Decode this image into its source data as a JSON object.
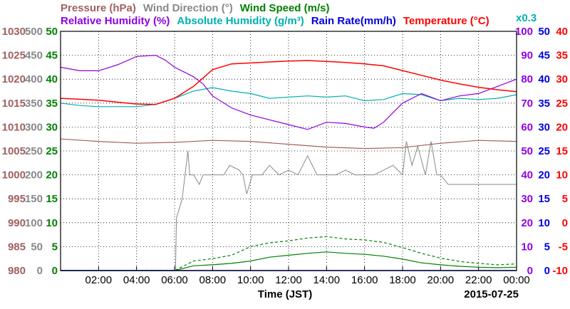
{
  "chart_data": {
    "type": "line",
    "legend": {
      "row1": [
        {
          "key": "pressure",
          "label": "Pressure (hPa)",
          "color": "#a06060"
        },
        {
          "key": "wind_dir",
          "label": "Wind Direction (°)",
          "color": "#888888"
        },
        {
          "key": "wind_speed",
          "label": "Wind Speed (m/s)",
          "color": "#008000"
        }
      ],
      "row2": [
        {
          "key": "rh",
          "label": "Relative Humidity (%)",
          "color": "#9000e0"
        },
        {
          "key": "ah",
          "label": "Absolute Humidity (g/m³)",
          "color": "#00b0b0"
        },
        {
          "key": "rain",
          "label": "Rain Rate(mm/h)",
          "color": "#0000e0"
        },
        {
          "key": "temp",
          "label": "Temperature (°C)",
          "color": "#ff0000"
        }
      ],
      "ah_scale_note": "x0.3"
    },
    "x_axis": {
      "label": "Time (JST)",
      "range_hours": [
        0,
        24
      ],
      "tick_hours": [
        2,
        4,
        6,
        8,
        10,
        12,
        14,
        16,
        18,
        20,
        22,
        24
      ],
      "tick_labels": [
        "02:00",
        "04:00",
        "06:00",
        "08:00",
        "10:00",
        "12:00",
        "14:00",
        "16:00",
        "18:00",
        "20:00",
        "22:00",
        "00:00"
      ],
      "date": "2015-07-25"
    },
    "y_axes": {
      "pressure": {
        "min": 980,
        "max": 1030,
        "ticks": [
          "980",
          "985",
          "990",
          "995",
          "1000",
          "1005",
          "1010",
          "1015",
          "1020",
          "1025",
          "1030"
        ],
        "color": "#a06060"
      },
      "wind_dir": {
        "min": 0,
        "max": 500,
        "ticks": [
          "0",
          "50",
          "100",
          "150",
          "200",
          "250",
          "300",
          "350",
          "400",
          "450",
          "500"
        ],
        "color": "#888888"
      },
      "wind_speed": {
        "min": 0,
        "max": 50,
        "ticks": [
          "0",
          "5",
          "10",
          "15",
          "20",
          "25",
          "30",
          "35",
          "40",
          "45",
          "50"
        ],
        "color": "#008000"
      },
      "rh": {
        "min": 0,
        "max": 100,
        "ticks": [
          "0",
          "10",
          "20",
          "30",
          "40",
          "50",
          "60",
          "70",
          "80",
          "90",
          "100"
        ],
        "color": "#9000e0"
      },
      "rain": {
        "min": 0,
        "max": 50,
        "ticks": [
          "0",
          "5",
          "10",
          "15",
          "20",
          "25",
          "30",
          "35",
          "40",
          "45",
          "50"
        ],
        "color": "#0000e0"
      },
      "temp": {
        "min": -10,
        "max": 40,
        "ticks": [
          "-10",
          "-5",
          "0",
          "5",
          "10",
          "15",
          "20",
          "25",
          "30",
          "35",
          "40"
        ],
        "color": "#ff0000"
      }
    },
    "grid": true,
    "series": {
      "temp": {
        "x": [
          0,
          1,
          2,
          3,
          4,
          5,
          6,
          7,
          8,
          9,
          10,
          11,
          12,
          13,
          14,
          15,
          16,
          17,
          18,
          19,
          20,
          21,
          22,
          23,
          24
        ],
        "y": [
          26,
          25.8,
          25.6,
          25.2,
          24.8,
          24.7,
          26,
          28.5,
          32,
          33.2,
          33.4,
          33.6,
          33.8,
          33.9,
          33.7,
          33.5,
          33.2,
          32.8,
          31.8,
          30.8,
          29.8,
          29,
          28.3,
          27.8,
          27.4
        ]
      },
      "pressure": {
        "x": [
          0,
          2,
          4,
          6,
          8,
          10,
          12,
          14,
          16,
          18,
          20,
          22,
          24
        ],
        "y": [
          1007.5,
          1007,
          1006.6,
          1006.8,
          1007.2,
          1007,
          1006.4,
          1005.8,
          1005.5,
          1005.7,
          1006.6,
          1007.2,
          1007
        ]
      },
      "rh": {
        "x": [
          0,
          1,
          2,
          3,
          4,
          5,
          5.5,
          6,
          7,
          7.5,
          8,
          9,
          10,
          11,
          12,
          13,
          14,
          15,
          16,
          16.5,
          17,
          18,
          19,
          20,
          21,
          22,
          23,
          24
        ],
        "y": [
          85,
          83.5,
          83.5,
          86,
          89.5,
          90,
          88,
          85,
          81,
          78,
          73,
          68,
          65,
          63,
          61,
          59,
          62,
          61.5,
          60,
          59.5,
          62,
          70,
          74,
          71,
          73,
          74,
          77,
          80
        ]
      },
      "ah": {
        "x": [
          0,
          1,
          2,
          3,
          4,
          5,
          6,
          7,
          8,
          9,
          10,
          11,
          12,
          13,
          14,
          15,
          16,
          17,
          18,
          19,
          20,
          21,
          22,
          23,
          24
        ],
        "y": [
          70,
          69,
          68.5,
          68.5,
          68.5,
          69.5,
          72,
          75,
          76.5,
          75,
          74,
          72,
          72.5,
          73,
          72.5,
          73,
          71,
          71.5,
          74,
          73.5,
          71,
          72,
          71.5,
          72,
          73.5
        ]
      },
      "wind_dir": {
        "x": [
          0,
          6.05,
          6.1,
          6.4,
          6.7,
          6.8,
          7.0,
          7.3,
          7.5,
          8.0,
          8.6,
          8.9,
          9.4,
          9.6,
          9.8,
          10.1,
          10.6,
          11.0,
          11.5,
          12.0,
          12.5,
          13.0,
          13.5,
          14.0,
          14.5,
          15.0,
          15.5,
          16.0,
          16.5,
          17.0,
          17.5,
          18.0,
          18.2,
          18.5,
          18.8,
          19.2,
          19.5,
          19.8,
          20.0,
          20.4,
          21,
          22,
          23,
          24
        ],
        "y": [
          0,
          0,
          110,
          150,
          250,
          200,
          200,
          180,
          200,
          200,
          200,
          220,
          210,
          200,
          160,
          200,
          200,
          220,
          200,
          210,
          200,
          240,
          200,
          200,
          200,
          210,
          200,
          200,
          200,
          210,
          220,
          200,
          270,
          220,
          260,
          200,
          270,
          200,
          200,
          180,
          180,
          180,
          180,
          180
        ]
      },
      "wind_speed": {
        "x": [
          0,
          6,
          7,
          8,
          9,
          10,
          11,
          12,
          13,
          14,
          15,
          16,
          17,
          18,
          19,
          20,
          21,
          22,
          23,
          24
        ],
        "y": [
          0,
          0,
          1,
          1.2,
          1.5,
          2,
          2.8,
          3.2,
          3.6,
          3.9,
          3.6,
          3.4,
          3.0,
          2.4,
          1.6,
          1.2,
          0.9,
          0.7,
          0.6,
          0.7
        ]
      },
      "wind_gust": {
        "x": [
          0,
          6,
          7,
          8,
          9,
          10,
          11,
          12,
          13,
          14,
          15,
          16,
          17,
          18,
          19,
          20,
          21,
          22,
          23,
          24
        ],
        "y": [
          0,
          0,
          2,
          2.5,
          3.2,
          5,
          5.8,
          6.2,
          6.8,
          7.1,
          6.6,
          6.4,
          5.9,
          4.8,
          3.6,
          2.6,
          1.9,
          1.5,
          1.2,
          1.4
        ]
      },
      "rain": {
        "x": [
          0,
          24
        ],
        "y": [
          0,
          0
        ]
      }
    }
  }
}
